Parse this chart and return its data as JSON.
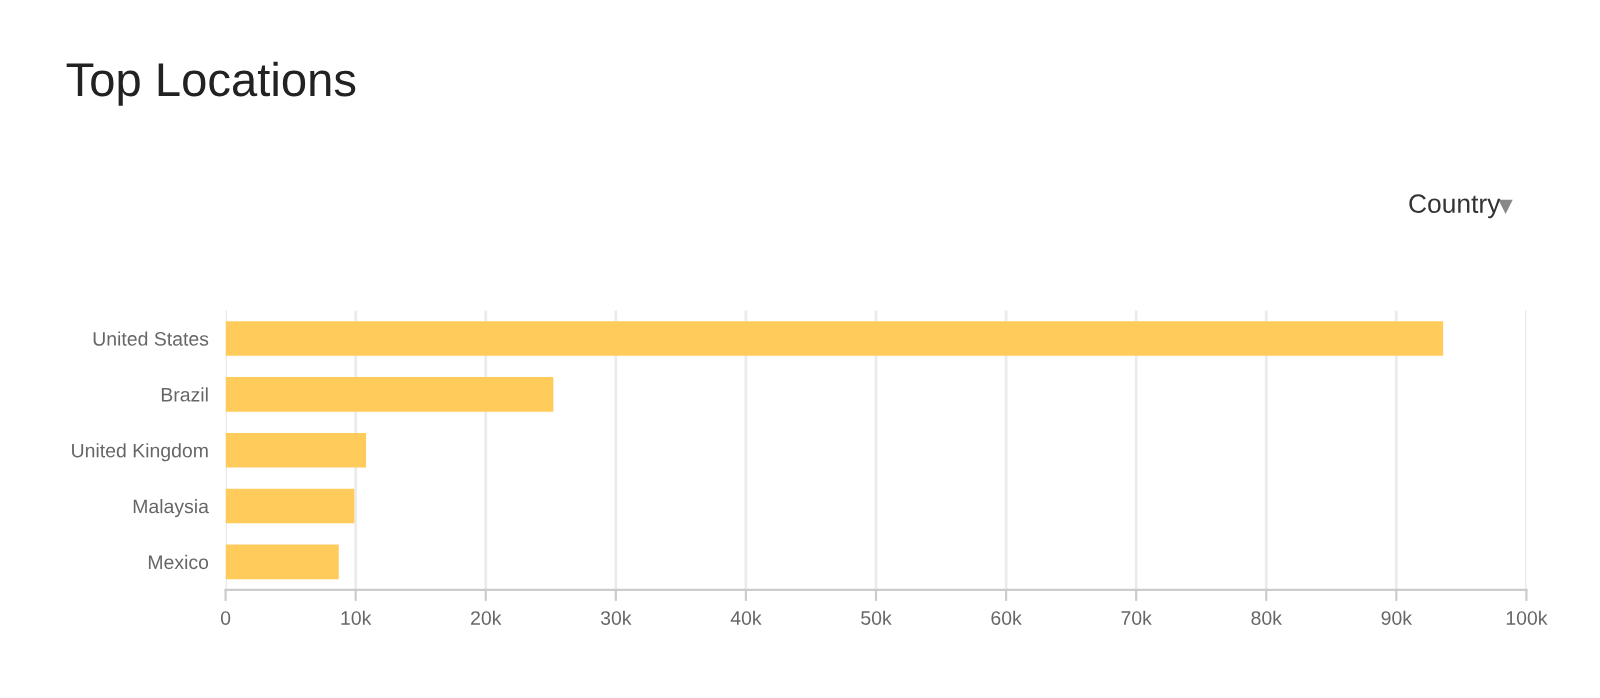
{
  "chart_data": {
    "type": "bar",
    "orientation": "horizontal",
    "title": "Top Locations",
    "categories": [
      "United States",
      "Brazil",
      "United Kingdom",
      "Malaysia",
      "Mexico"
    ],
    "values": [
      93.6,
      25.2,
      10.8,
      9.9,
      8.7
    ],
    "color": "#ffcc5c",
    "xlim": [
      0,
      100
    ],
    "xticks": [
      {
        "value": 0,
        "label": "0"
      },
      {
        "value": 10,
        "label": "10k"
      },
      {
        "value": 20,
        "label": "20k"
      },
      {
        "value": 30,
        "label": "30k"
      },
      {
        "value": 40,
        "label": "40k"
      },
      {
        "value": 50,
        "label": "50k"
      },
      {
        "value": 60,
        "label": "60k"
      },
      {
        "value": 70,
        "label": "70k"
      },
      {
        "value": 80,
        "label": "80k"
      },
      {
        "value": 90,
        "label": "90k"
      },
      {
        "value": 100,
        "label": "100k"
      }
    ],
    "grid": "x",
    "annotations": [
      "Country"
    ]
  }
}
